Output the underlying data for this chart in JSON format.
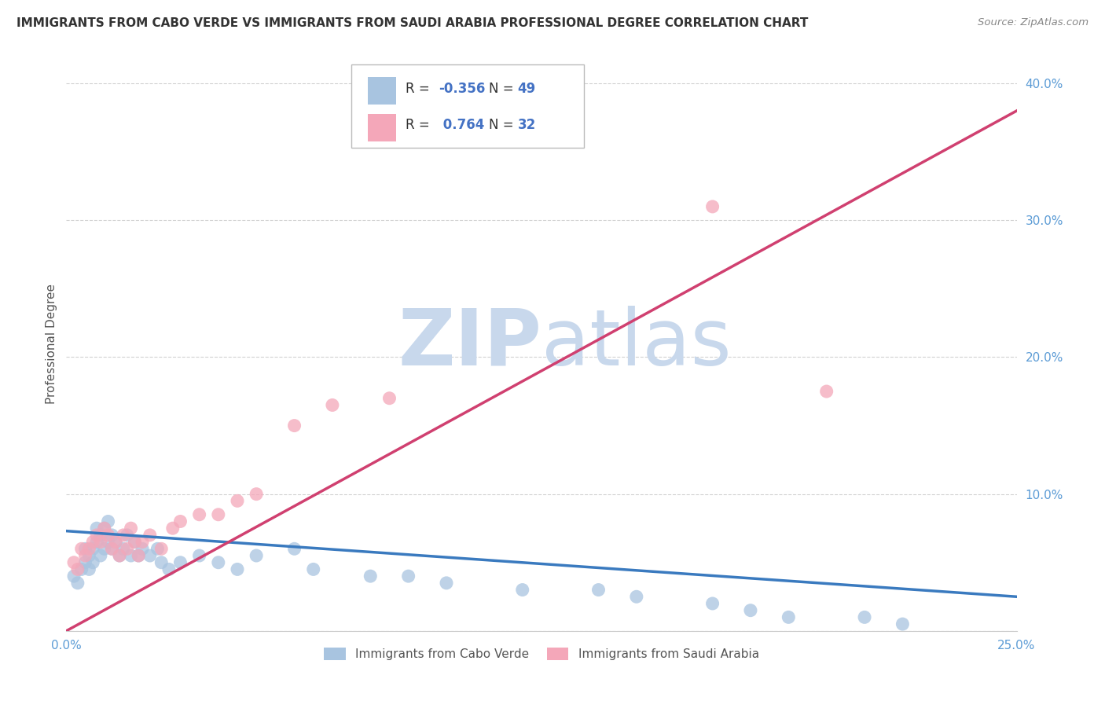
{
  "title": "IMMIGRANTS FROM CABO VERDE VS IMMIGRANTS FROM SAUDI ARABIA PROFESSIONAL DEGREE CORRELATION CHART",
  "source": "Source: ZipAtlas.com",
  "ylabel": "Professional Degree",
  "xlim": [
    0.0,
    0.25
  ],
  "ylim": [
    0.0,
    0.42
  ],
  "legend_labels": [
    "Immigrants from Cabo Verde",
    "Immigrants from Saudi Arabia"
  ],
  "R_cabo": -0.356,
  "N_cabo": 49,
  "R_saudi": 0.764,
  "N_saudi": 32,
  "cabo_color": "#a8c4e0",
  "saudi_color": "#f4a7b9",
  "cabo_line_color": "#3a7abf",
  "saudi_line_color": "#d04070",
  "background_color": "#ffffff",
  "cabo_scatter_x": [
    0.002,
    0.003,
    0.004,
    0.005,
    0.005,
    0.006,
    0.006,
    0.007,
    0.007,
    0.008,
    0.008,
    0.009,
    0.009,
    0.01,
    0.01,
    0.011,
    0.011,
    0.012,
    0.012,
    0.013,
    0.014,
    0.015,
    0.016,
    0.017,
    0.018,
    0.019,
    0.02,
    0.022,
    0.024,
    0.025,
    0.027,
    0.03,
    0.035,
    0.04,
    0.045,
    0.05,
    0.06,
    0.065,
    0.08,
    0.09,
    0.1,
    0.12,
    0.14,
    0.15,
    0.17,
    0.18,
    0.19,
    0.21,
    0.22
  ],
  "cabo_scatter_y": [
    0.04,
    0.035,
    0.045,
    0.05,
    0.06,
    0.045,
    0.055,
    0.05,
    0.06,
    0.065,
    0.075,
    0.07,
    0.055,
    0.06,
    0.075,
    0.065,
    0.08,
    0.06,
    0.07,
    0.065,
    0.055,
    0.06,
    0.07,
    0.055,
    0.065,
    0.055,
    0.06,
    0.055,
    0.06,
    0.05,
    0.045,
    0.05,
    0.055,
    0.05,
    0.045,
    0.055,
    0.06,
    0.045,
    0.04,
    0.04,
    0.035,
    0.03,
    0.03,
    0.025,
    0.02,
    0.015,
    0.01,
    0.01,
    0.005
  ],
  "saudi_scatter_x": [
    0.002,
    0.003,
    0.004,
    0.005,
    0.006,
    0.007,
    0.008,
    0.009,
    0.01,
    0.011,
    0.012,
    0.013,
    0.014,
    0.015,
    0.016,
    0.017,
    0.018,
    0.019,
    0.02,
    0.022,
    0.025,
    0.028,
    0.03,
    0.035,
    0.04,
    0.045,
    0.05,
    0.06,
    0.07,
    0.085,
    0.17,
    0.2
  ],
  "saudi_scatter_y": [
    0.05,
    0.045,
    0.06,
    0.055,
    0.06,
    0.065,
    0.07,
    0.065,
    0.075,
    0.07,
    0.06,
    0.065,
    0.055,
    0.07,
    0.06,
    0.075,
    0.065,
    0.055,
    0.065,
    0.07,
    0.06,
    0.075,
    0.08,
    0.085,
    0.085,
    0.095,
    0.1,
    0.15,
    0.165,
    0.17,
    0.31,
    0.175
  ],
  "cabo_trend_x": [
    0.0,
    0.25
  ],
  "cabo_trend_y": [
    0.073,
    0.025
  ],
  "saudi_trend_x": [
    0.0,
    0.25
  ],
  "saudi_trend_y": [
    0.0,
    0.38
  ]
}
